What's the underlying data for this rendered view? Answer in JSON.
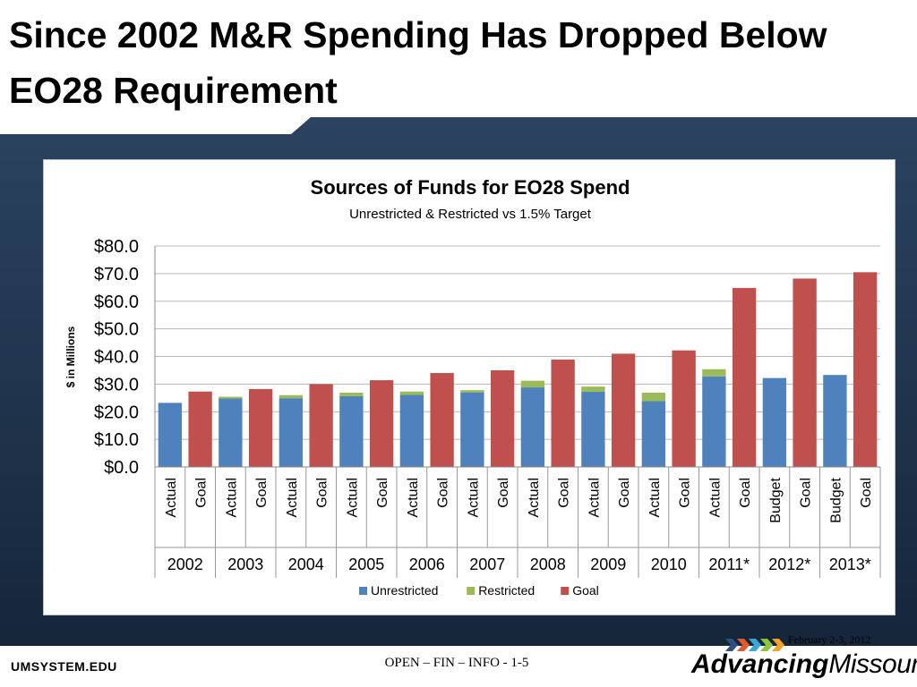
{
  "slide": {
    "title": "Since 2002 M&R Spending Has Dropped Below EO28 Requirement",
    "footer_left": "UMSYSTEM.EDU",
    "footer_center": "OPEN – FIN – INFO - 1-5",
    "footer_date": "February 2-3, 2012",
    "logo_bold": "Advancing",
    "logo_light": "Missouri",
    "logo_arrow_colors": [
      "#2f4f7f",
      "#e05a2b",
      "#3aa7d8",
      "#8cc63f",
      "#f2a22b"
    ]
  },
  "chart_data": {
    "type": "bar",
    "title": "Sources of Funds for EO28 Spend",
    "subtitle": "Unrestricted & Restricted vs 1.5% Target",
    "ylabel": "$ in Millions",
    "ylim": [
      0,
      80
    ],
    "yticks": [
      "$0.0",
      "$10.0",
      "$20.0",
      "$30.0",
      "$40.0",
      "$50.0",
      "$60.0",
      "$70.0",
      "$80.0"
    ],
    "grid": true,
    "legend_position": "bottom",
    "years": [
      "2002",
      "2003",
      "2004",
      "2005",
      "2006",
      "2007",
      "2008",
      "2009",
      "2010",
      "2011*",
      "2012*",
      "2013*"
    ],
    "bars": [
      {
        "year": "2002",
        "label": "Actual",
        "unrestricted": 23.2,
        "restricted": 0.0,
        "goal": 0
      },
      {
        "year": "2002",
        "label": "Goal",
        "unrestricted": 0,
        "restricted": 0,
        "goal": 27.3
      },
      {
        "year": "2003",
        "label": "Actual",
        "unrestricted": 24.8,
        "restricted": 0.6,
        "goal": 0
      },
      {
        "year": "2003",
        "label": "Goal",
        "unrestricted": 0,
        "restricted": 0,
        "goal": 28.2
      },
      {
        "year": "2004",
        "label": "Actual",
        "unrestricted": 24.9,
        "restricted": 1.1,
        "goal": 0
      },
      {
        "year": "2004",
        "label": "Goal",
        "unrestricted": 0,
        "restricted": 0,
        "goal": 30.0
      },
      {
        "year": "2005",
        "label": "Actual",
        "unrestricted": 25.6,
        "restricted": 1.3,
        "goal": 0
      },
      {
        "year": "2005",
        "label": "Goal",
        "unrestricted": 0,
        "restricted": 0,
        "goal": 31.4
      },
      {
        "year": "2006",
        "label": "Actual",
        "unrestricted": 26.1,
        "restricted": 1.2,
        "goal": 0
      },
      {
        "year": "2006",
        "label": "Goal",
        "unrestricted": 0,
        "restricted": 0,
        "goal": 34.0
      },
      {
        "year": "2007",
        "label": "Actual",
        "unrestricted": 27.0,
        "restricted": 0.8,
        "goal": 0
      },
      {
        "year": "2007",
        "label": "Goal",
        "unrestricted": 0,
        "restricted": 0,
        "goal": 35.0
      },
      {
        "year": "2008",
        "label": "Actual",
        "unrestricted": 28.8,
        "restricted": 2.4,
        "goal": 0
      },
      {
        "year": "2008",
        "label": "Goal",
        "unrestricted": 0,
        "restricted": 0,
        "goal": 38.9
      },
      {
        "year": "2009",
        "label": "Actual",
        "unrestricted": 27.2,
        "restricted": 1.9,
        "goal": 0
      },
      {
        "year": "2009",
        "label": "Goal",
        "unrestricted": 0,
        "restricted": 0,
        "goal": 41.0
      },
      {
        "year": "2010",
        "label": "Actual",
        "unrestricted": 23.8,
        "restricted": 3.1,
        "goal": 0
      },
      {
        "year": "2010",
        "label": "Goal",
        "unrestricted": 0,
        "restricted": 0,
        "goal": 42.2
      },
      {
        "year": "2011*",
        "label": "Actual",
        "unrestricted": 32.8,
        "restricted": 2.6,
        "goal": 0
      },
      {
        "year": "2011*",
        "label": "Goal",
        "unrestricted": 0,
        "restricted": 0,
        "goal": 64.8
      },
      {
        "year": "2012*",
        "label": "Budget",
        "unrestricted": 32.2,
        "restricted": 0,
        "goal": 0
      },
      {
        "year": "2012*",
        "label": "Goal",
        "unrestricted": 0,
        "restricted": 0,
        "goal": 68.2
      },
      {
        "year": "2013*",
        "label": "Budget",
        "unrestricted": 33.3,
        "restricted": 0,
        "goal": 0
      },
      {
        "year": "2013*",
        "label": "Goal",
        "unrestricted": 0,
        "restricted": 0,
        "goal": 70.5
      }
    ],
    "series": [
      {
        "name": "Unrestricted",
        "key": "unrestricted",
        "color": "#4f81bd"
      },
      {
        "name": "Restricted",
        "key": "restricted",
        "color": "#9bbb59"
      },
      {
        "name": "Goal",
        "key": "goal",
        "color": "#c0504d"
      }
    ]
  }
}
